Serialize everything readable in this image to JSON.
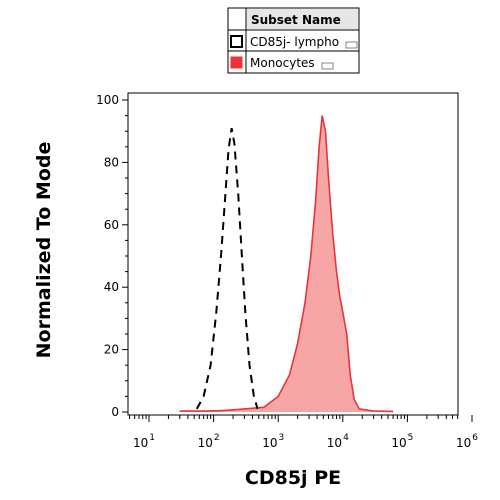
{
  "chart_data": {
    "type": "area",
    "xlabel": "CD85j PE",
    "ylabel": "Normalized To Mode",
    "x_scale": "log",
    "xlim": [
      5,
      1000000
    ],
    "ylim": [
      0,
      100
    ],
    "x_ticks": [
      {
        "base": "10",
        "exp": "1"
      },
      {
        "base": "10",
        "exp": "2"
      },
      {
        "base": "10",
        "exp": "3"
      },
      {
        "base": "10",
        "exp": "4"
      },
      {
        "base": "10",
        "exp": "5"
      },
      {
        "base": "10",
        "exp": "6"
      }
    ],
    "y_ticks": [
      "0",
      "20",
      "40",
      "60",
      "80",
      "100"
    ],
    "legend": {
      "title": "Subset Name",
      "position": "top-center",
      "entries": [
        {
          "label": "CD85j- lympho",
          "style": "dashed-outline",
          "color": "#000000"
        },
        {
          "label": "Monocytes",
          "style": "filled",
          "color": "#e8343a"
        }
      ]
    },
    "series": [
      {
        "name": "CD85j- lympho",
        "style": "dashed",
        "color": "#000000",
        "points": [
          [
            55,
            1
          ],
          [
            70,
            5
          ],
          [
            90,
            15
          ],
          [
            110,
            32
          ],
          [
            130,
            50
          ],
          [
            150,
            68
          ],
          [
            170,
            84
          ],
          [
            190,
            91
          ],
          [
            210,
            86
          ],
          [
            240,
            70
          ],
          [
            270,
            52
          ],
          [
            310,
            32
          ],
          [
            360,
            15
          ],
          [
            420,
            5
          ],
          [
            480,
            1
          ]
        ]
      },
      {
        "name": "Monocytes",
        "style": "filled",
        "color": "#e8343a",
        "fill": "#f7a6a6",
        "points": [
          [
            30,
            0.3
          ],
          [
            80,
            0.3
          ],
          [
            150,
            0.5
          ],
          [
            300,
            1
          ],
          [
            600,
            1.5
          ],
          [
            1000,
            5
          ],
          [
            1500,
            12
          ],
          [
            2000,
            22
          ],
          [
            2600,
            35
          ],
          [
            3200,
            50
          ],
          [
            3800,
            68
          ],
          [
            4300,
            85
          ],
          [
            4800,
            95
          ],
          [
            5400,
            90
          ],
          [
            6000,
            75
          ],
          [
            7000,
            57
          ],
          [
            8000,
            45
          ],
          [
            9000,
            37
          ],
          [
            10000,
            32
          ],
          [
            11500,
            25
          ],
          [
            13000,
            12
          ],
          [
            15000,
            4
          ],
          [
            18000,
            1
          ],
          [
            30000,
            0.3
          ],
          [
            60000,
            0.2
          ]
        ]
      }
    ]
  }
}
